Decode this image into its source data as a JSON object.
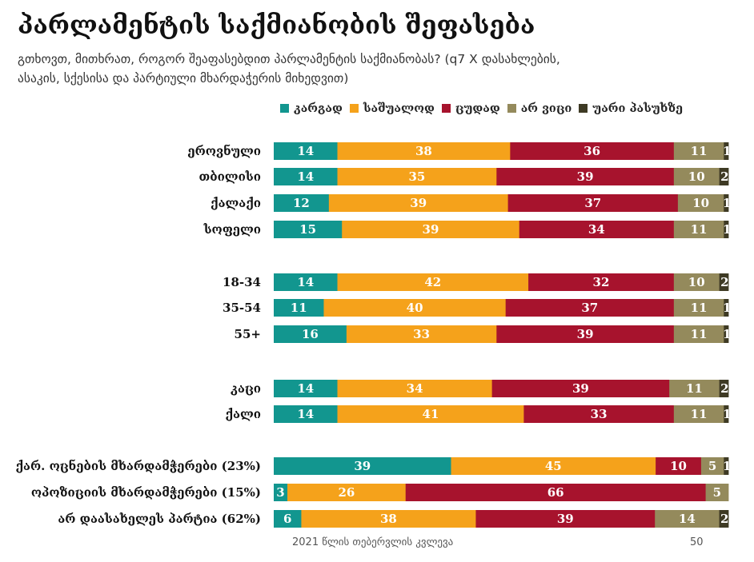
{
  "chart_data": {
    "type": "bar",
    "orientation": "horizontal",
    "stacked": true,
    "title": "პარლამენტის საქმიანობის შეფასება",
    "subtitle": "გთხოვთ, მითხრათ, როგორ შეაფასებდით პარლამენტის საქმიანობას? (q7 X დასახლების, ასაკის, სქესისა და პარტიული მხარდაჭერის მიხედვით)",
    "xlim": [
      0,
      100
    ],
    "legend_position": "top",
    "categories": [
      "ეროვნული",
      "თბილისი",
      "ქალაქი",
      "სოფელი",
      "18-34",
      "35-54",
      "55+",
      "კაცი",
      "ქალი",
      "ქარ. ოცნების მხარდამჭერები (23%)",
      "ოპოზიციის მხარდამჭერები (15%)",
      "არ დაასახელეს პარტია (62%)"
    ],
    "groups": [
      [
        0,
        1,
        2,
        3
      ],
      [
        4,
        5,
        6
      ],
      [
        7,
        8
      ],
      [
        9,
        10,
        11
      ]
    ],
    "series": [
      {
        "name": "კარგად",
        "color": "#12968f",
        "values": [
          14,
          14,
          12,
          15,
          14,
          11,
          16,
          14,
          14,
          39,
          3,
          6
        ]
      },
      {
        "name": "საშუალოდ",
        "color": "#f5a21b",
        "values": [
          38,
          35,
          39,
          39,
          42,
          40,
          33,
          34,
          41,
          45,
          26,
          38
        ]
      },
      {
        "name": "ცუდად",
        "color": "#a7132d",
        "values": [
          36,
          39,
          37,
          34,
          32,
          37,
          39,
          39,
          33,
          10,
          66,
          39
        ]
      },
      {
        "name": "არ ვიცი",
        "color": "#948a5c",
        "values": [
          11,
          10,
          10,
          11,
          10,
          11,
          11,
          11,
          11,
          5,
          5,
          14
        ]
      },
      {
        "name": "უარი პასუხზე",
        "color": "#3e3a24",
        "values": [
          1,
          2,
          1,
          1,
          2,
          1,
          1,
          2,
          1,
          1,
          0,
          2
        ]
      }
    ]
  },
  "footer": {
    "source": "2021 წლის თებერვლის კვლევა",
    "page": "50"
  }
}
